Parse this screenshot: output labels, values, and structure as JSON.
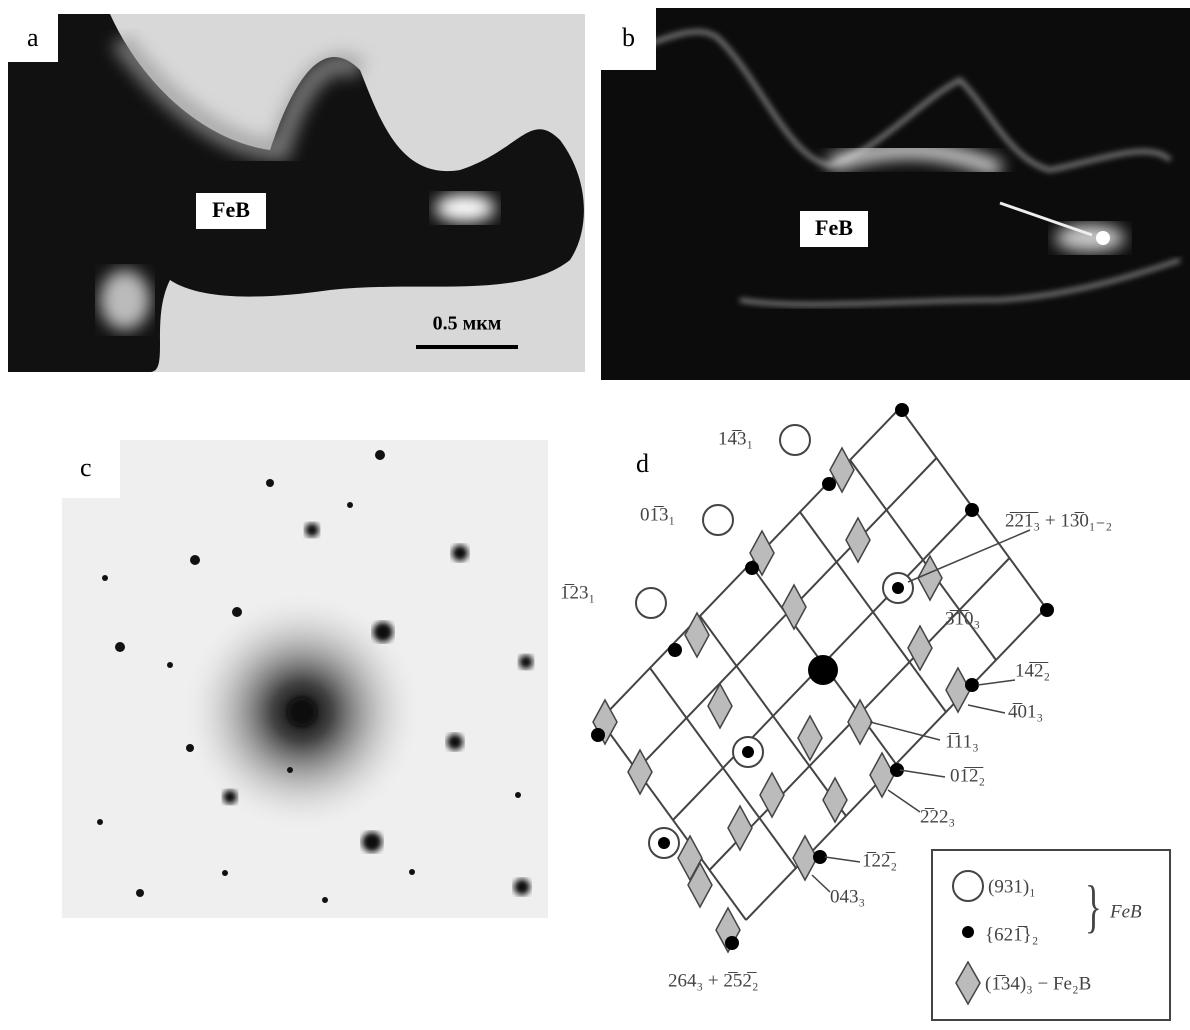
{
  "panels": {
    "a": {
      "label": "a",
      "phase_label": "FeB",
      "scale_bar": "0.5 мкм"
    },
    "b": {
      "label": "b",
      "phase_label": "FeB"
    },
    "c": {
      "label": "c"
    },
    "d": {
      "label": "d",
      "reflections": [
        "14̅3₁",
        "01̅3₁",
        "1̅23₁",
        "2̅2̅1̅₃ + 13̅0₁₋₂",
        "3̅1̅0₃",
        "14̅2̅₂",
        "4̅01₃",
        "1̅11₃",
        "01̅2̅₂",
        "2̅22₃",
        "1̅22̅₂",
        "043₃",
        "264₃ + 2̅52̅₂"
      ],
      "legend": {
        "feb_1": "(931)₁",
        "feb_2": "{621̅}₂",
        "feb_group": "FeB",
        "fe2b": "(1̅34)₃ − Fe₂B"
      }
    }
  }
}
